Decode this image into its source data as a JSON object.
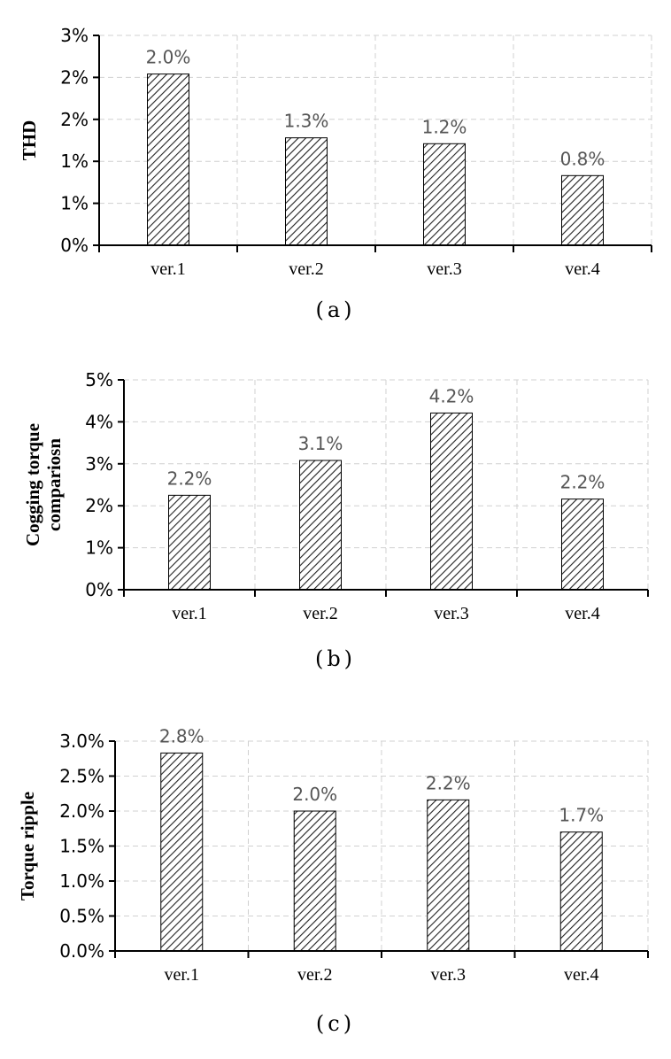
{
  "charts": [
    {
      "caption": "(a)",
      "chart_data": {
        "type": "bar",
        "categories": [
          "ver.1",
          "ver.2",
          "ver.3",
          "ver.4"
        ],
        "values": [
          2.04,
          1.28,
          1.21,
          0.83
        ],
        "data_labels": [
          "2.0%",
          "1.3%",
          "1.2%",
          "0.8%"
        ],
        "ylabel": "THD",
        "ylim": [
          0,
          2.5
        ],
        "y_ticks": [
          0,
          0.5,
          1.0,
          1.5,
          2.0,
          2.5
        ],
        "y_tick_labels": [
          "0%",
          "1%",
          "1%",
          "2%",
          "2%",
          "3%"
        ],
        "grid": "dashed",
        "bar_fill": "diagonal-hatch"
      }
    },
    {
      "caption": "(b)",
      "chart_data": {
        "type": "bar",
        "categories": [
          "ver.1",
          "ver.2",
          "ver.3",
          "ver.4"
        ],
        "values": [
          2.25,
          3.08,
          4.21,
          2.16
        ],
        "data_labels": [
          "2.2%",
          "3.1%",
          "4.2%",
          "2.2%"
        ],
        "ylabel": "Cogging torque compariosn",
        "ylim": [
          0,
          5
        ],
        "y_ticks": [
          0,
          1,
          2,
          3,
          4,
          5
        ],
        "y_tick_labels": [
          "0%",
          "1%",
          "2%",
          "3%",
          "4%",
          "5%"
        ],
        "grid": "dashed",
        "bar_fill": "diagonal-hatch"
      }
    },
    {
      "caption": "(c)",
      "chart_data": {
        "type": "bar",
        "categories": [
          "ver.1",
          "ver.2",
          "ver.3",
          "ver.4"
        ],
        "values": [
          2.83,
          2.0,
          2.16,
          1.7
        ],
        "data_labels": [
          "2.8%",
          "2.0%",
          "2.2%",
          "1.7%"
        ],
        "ylabel": "Torque ripple",
        "ylim": [
          0,
          3.0
        ],
        "y_ticks": [
          0,
          0.5,
          1.0,
          1.5,
          2.0,
          2.5,
          3.0
        ],
        "y_tick_labels": [
          "0.0%",
          "0.5%",
          "1.0%",
          "1.5%",
          "2.0%",
          "2.5%",
          "3.0%"
        ],
        "grid": "dashed",
        "bar_fill": "diagonal-hatch"
      }
    }
  ]
}
